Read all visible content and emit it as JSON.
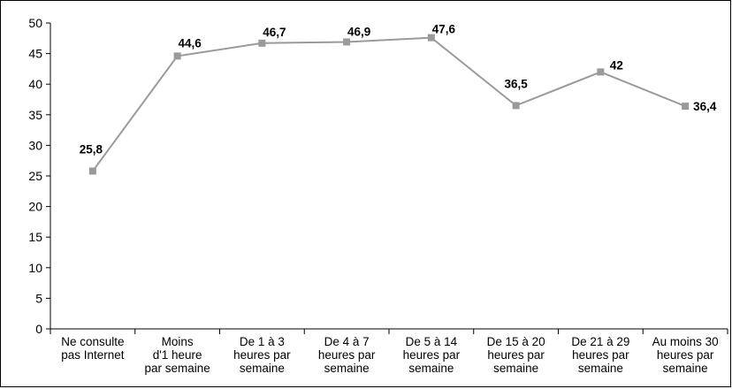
{
  "chart_data": {
    "type": "line",
    "categories": [
      [
        "Ne consulte",
        "pas Internet"
      ],
      [
        "Moins",
        "d'1 heure",
        "par semaine"
      ],
      [
        "De 1 à 3",
        "heures par",
        "semaine"
      ],
      [
        "De 4 à 7",
        "heures par",
        "semaine"
      ],
      [
        "De 5 à 14",
        "heures par",
        "semaine"
      ],
      [
        "De 15 à 20",
        "heures par",
        "semaine"
      ],
      [
        "De 21 à 29",
        "heures par",
        "semaine"
      ],
      [
        "Au moins 30",
        "heures par",
        "semaine"
      ]
    ],
    "values": [
      25.8,
      44.6,
      46.7,
      46.9,
      47.6,
      36.5,
      42,
      36.4
    ],
    "value_labels": [
      "25,8",
      "44,6",
      "46,7",
      "46,9",
      "47,6",
      "36,5",
      "42",
      "36,4"
    ],
    "ylim": [
      0,
      50
    ],
    "yticks": [
      0,
      5,
      10,
      15,
      20,
      25,
      30,
      35,
      40,
      45,
      50
    ],
    "title": "",
    "xlabel": "",
    "ylabel": "",
    "grid": false,
    "legend": "none",
    "line_color": "#9a9a9a",
    "marker_color": "#9a9a9a"
  }
}
